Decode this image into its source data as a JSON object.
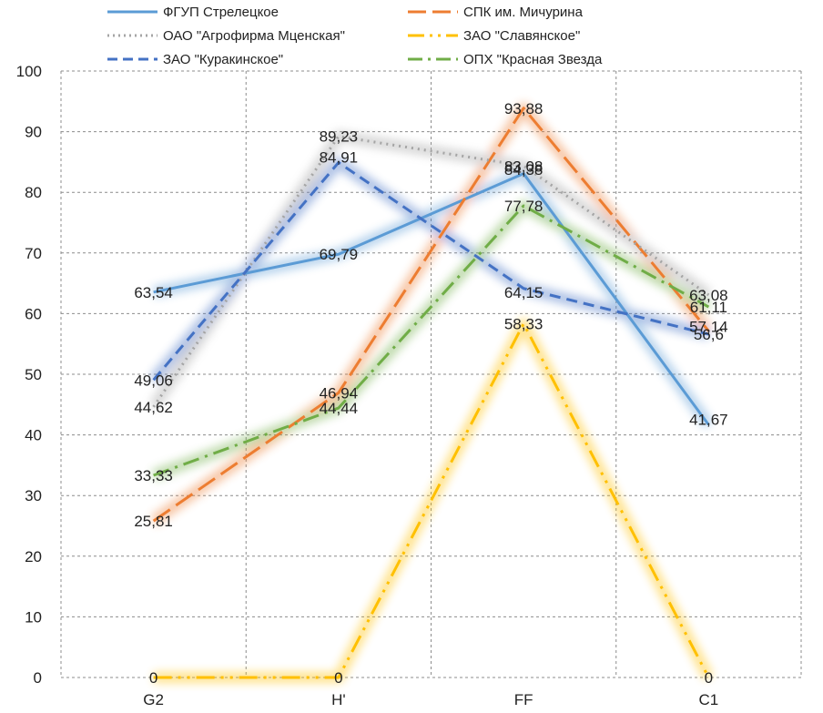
{
  "chart_data": {
    "type": "line",
    "categories": [
      "G2",
      "H'",
      "FF",
      "C1"
    ],
    "ylim": [
      0,
      100
    ],
    "yticks": [
      0,
      10,
      20,
      30,
      40,
      50,
      60,
      70,
      80,
      90,
      100
    ],
    "grid": true,
    "legend_position": "top",
    "series": [
      {
        "name": "ФГУП Стрелецкое",
        "values": [
          63.54,
          69.79,
          83.08,
          41.67
        ],
        "labels": [
          "63,54",
          "69,79",
          "83,08",
          "41,67"
        ],
        "color": "#5B9BD5",
        "dash": "solid"
      },
      {
        "name": "СПК им. Мичурина",
        "values": [
          25.81,
          46.94,
          93.88,
          57.14
        ],
        "labels": [
          "25,81",
          "46,94",
          "93,88",
          "57,14"
        ],
        "color": "#ED7D31",
        "dash": "longdash"
      },
      {
        "name": "ОАО \"Агрофирма Мценская\"",
        "values": [
          44.62,
          89.23,
          84.38,
          63.08
        ],
        "labels": [
          "44,62",
          "89,23",
          "84,38",
          "63,08"
        ],
        "color": "#A5A5A5",
        "dash": "dot"
      },
      {
        "name": "ЗАО \"Славянское\"",
        "values": [
          0,
          0,
          58.33,
          0
        ],
        "labels": [
          "0",
          "0",
          "58,33",
          "0"
        ],
        "color": "#FFC000",
        "dash": "longdashdotdot"
      },
      {
        "name": "ЗАО \"Куракинское\"",
        "values": [
          49.06,
          84.91,
          64.15,
          56.6
        ],
        "labels": [
          "49,06",
          "84,91",
          "64,15",
          "56,6"
        ],
        "color": "#4472C4",
        "dash": "dash"
      },
      {
        "name": "ОПХ \"Красная Звезда",
        "values": [
          33.33,
          44.44,
          77.78,
          61.11
        ],
        "labels": [
          "33,33",
          "44,44",
          "77,78",
          "61,11"
        ],
        "color": "#70AD47",
        "dash": "dashdot"
      }
    ]
  }
}
